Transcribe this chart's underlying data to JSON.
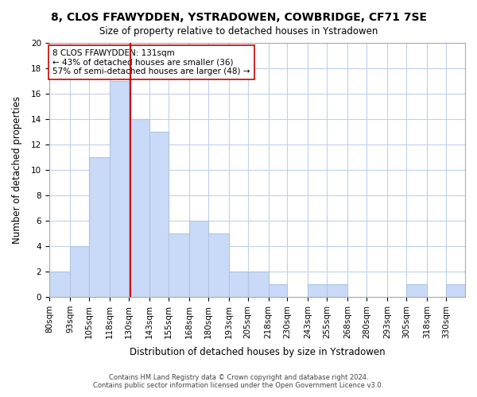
{
  "title": "8, CLOS FFAWYDDEN, YSTRADOWEN, COWBRIDGE, CF71 7SE",
  "subtitle": "Size of property relative to detached houses in Ystradowen",
  "xlabel": "Distribution of detached houses by size in Ystradowen",
  "ylabel": "Number of detached properties",
  "bin_labels": [
    "80sqm",
    "93sqm",
    "105sqm",
    "118sqm",
    "130sqm",
    "143sqm",
    "155sqm",
    "168sqm",
    "180sqm",
    "193sqm",
    "205sqm",
    "218sqm",
    "230sqm",
    "243sqm",
    "255sqm",
    "268sqm",
    "280sqm",
    "293sqm",
    "305sqm",
    "318sqm",
    "330sqm"
  ],
  "bin_edges": [
    80,
    93,
    105,
    118,
    130,
    143,
    155,
    168,
    180,
    193,
    205,
    218,
    230,
    243,
    255,
    268,
    280,
    293,
    305,
    318,
    330
  ],
  "counts": [
    2,
    4,
    11,
    17,
    14,
    13,
    5,
    6,
    5,
    2,
    2,
    1,
    0,
    1,
    1,
    0,
    0,
    0,
    1,
    0,
    1
  ],
  "bar_color": "#c9daf8",
  "bar_edge_color": "#b0c4de",
  "reference_line_x": 131,
  "reference_line_color": "#cc0000",
  "annotation_text": "8 CLOS FFAWYDDEN: 131sqm\n← 43% of detached houses are smaller (36)\n57% of semi-detached houses are larger (48) →",
  "annotation_box_color": "#ffffff",
  "annotation_box_edge": "#cc0000",
  "ylim": [
    0,
    20
  ],
  "yticks": [
    0,
    2,
    4,
    6,
    8,
    10,
    12,
    14,
    16,
    18,
    20
  ],
  "footer_line1": "Contains HM Land Registry data © Crown copyright and database right 2024.",
  "footer_line2": "Contains public sector information licensed under the Open Government Licence v3.0.",
  "background_color": "#ffffff",
  "grid_color": "#c0d0e8"
}
